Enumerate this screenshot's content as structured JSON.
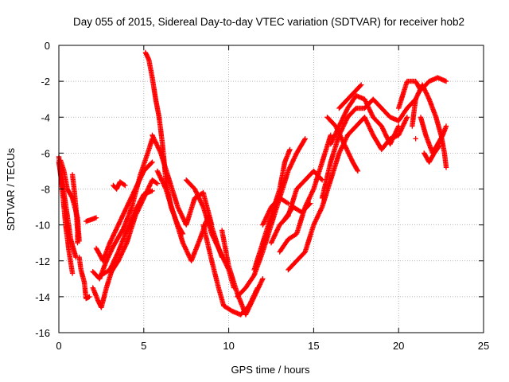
{
  "chart_data": {
    "type": "scatter",
    "title": "Day 055 of 2015, Sidereal Day-to-day VTEC variation (SDTVAR) for receiver hob2",
    "xlabel": "GPS time / hours",
    "ylabel": "SDTVAR / TECUs",
    "xlim": [
      0,
      25
    ],
    "ylim": [
      -16,
      0
    ],
    "xticks": [
      0,
      5,
      10,
      15,
      20,
      25
    ],
    "yticks": [
      0,
      -2,
      -4,
      -6,
      -8,
      -10,
      -12,
      -14,
      -16
    ],
    "grid": true,
    "marker": "+",
    "colors": {
      "series": "#ff0000",
      "axes": "#000000",
      "grid": "#a0a0a0"
    },
    "series": [
      {
        "tracks": [
          [
            [
              0.0,
              -6.2
            ],
            [
              0.2,
              -8.0
            ],
            [
              0.4,
              -10.0
            ],
            [
              0.6,
              -11.5
            ],
            [
              0.8,
              -12.7
            ]
          ],
          [
            [
              0.0,
              -6.5
            ],
            [
              0.15,
              -7.5
            ],
            [
              0.3,
              -8.2
            ],
            [
              0.5,
              -9.5
            ],
            [
              0.7,
              -10.8
            ],
            [
              1.0,
              -11.8
            ]
          ],
          [
            [
              0.1,
              -6.4
            ],
            [
              0.3,
              -7.0
            ],
            [
              0.5,
              -8.0
            ],
            [
              0.8,
              -8.5
            ],
            [
              1.1,
              -9.6
            ],
            [
              1.2,
              -10.9
            ]
          ],
          [
            [
              0.8,
              -7.2
            ],
            [
              0.9,
              -8.0
            ],
            [
              1.0,
              -9.0
            ],
            [
              1.1,
              -10.3
            ],
            [
              1.1,
              -11.0
            ]
          ],
          [
            [
              1.2,
              -11.8
            ],
            [
              1.3,
              -12.5
            ],
            [
              1.5,
              -13.2
            ],
            [
              1.6,
              -14.1
            ],
            [
              1.8,
              -14.0
            ]
          ],
          [
            [
              1.6,
              -9.8
            ],
            [
              1.9,
              -9.7
            ],
            [
              2.2,
              -9.6
            ]
          ],
          [
            [
              2.0,
              -13.5
            ],
            [
              2.3,
              -14.2
            ],
            [
              2.5,
              -14.6
            ],
            [
              2.8,
              -13.5
            ],
            [
              3.1,
              -12.6
            ],
            [
              3.5,
              -12.0
            ],
            [
              4.0,
              -11.0
            ],
            [
              4.5,
              -9.5
            ],
            [
              5.0,
              -8.5
            ],
            [
              5.5,
              -7.5
            ],
            [
              5.8,
              -7.7
            ]
          ],
          [
            [
              2.0,
              -12.6
            ],
            [
              2.4,
              -13.0
            ],
            [
              2.8,
              -12.0
            ],
            [
              3.2,
              -11.2
            ],
            [
              3.8,
              -10.2
            ],
            [
              4.3,
              -9.0
            ],
            [
              4.8,
              -7.2
            ],
            [
              5.3,
              -5.8
            ],
            [
              5.5,
              -5.2
            ]
          ],
          [
            [
              2.2,
              -11.3
            ],
            [
              2.6,
              -12.0
            ],
            [
              3.0,
              -11.0
            ],
            [
              3.5,
              -10.0
            ],
            [
              4.0,
              -9.0
            ],
            [
              4.5,
              -8.0
            ],
            [
              5.0,
              -7.0
            ],
            [
              5.5,
              -6.5
            ]
          ],
          [
            [
              2.5,
              -12.8
            ],
            [
              3.0,
              -12.5
            ],
            [
              3.5,
              -11.5
            ],
            [
              4.0,
              -10.3
            ],
            [
              4.5,
              -9.2
            ],
            [
              5.0,
              -8.3
            ],
            [
              5.5,
              -8.1
            ]
          ],
          [
            [
              3.2,
              -7.8
            ],
            [
              3.4,
              -8.0
            ],
            [
              3.6,
              -7.6
            ],
            [
              3.9,
              -7.8
            ]
          ],
          [
            [
              5.1,
              -0.4
            ],
            [
              5.3,
              -0.8
            ],
            [
              5.5,
              -1.8
            ],
            [
              5.7,
              -3.0
            ],
            [
              5.9,
              -4.0
            ],
            [
              6.1,
              -5.5
            ],
            [
              6.3,
              -7.5
            ],
            [
              6.6,
              -9.0
            ],
            [
              7.0,
              -10.0
            ],
            [
              7.3,
              -10.5
            ]
          ],
          [
            [
              5.8,
              -7.0
            ],
            [
              6.3,
              -8.0
            ],
            [
              6.8,
              -9.5
            ],
            [
              7.3,
              -11.0
            ],
            [
              7.8,
              -12.0
            ],
            [
              8.3,
              -10.8
            ],
            [
              8.8,
              -9.5
            ],
            [
              9.3,
              -11.0
            ],
            [
              9.6,
              -11.8
            ]
          ],
          [
            [
              5.5,
              -5.0
            ],
            [
              6.0,
              -6.0
            ],
            [
              6.5,
              -7.5
            ],
            [
              7.0,
              -9.0
            ],
            [
              7.5,
              -10.0
            ],
            [
              8.0,
              -8.5
            ],
            [
              8.5,
              -8.2
            ],
            [
              9.0,
              -10.0
            ]
          ],
          [
            [
              7.5,
              -7.5
            ],
            [
              8.0,
              -8.0
            ],
            [
              8.5,
              -9.0
            ],
            [
              9.0,
              -10.5
            ],
            [
              9.5,
              -11.5
            ],
            [
              10.0,
              -12.5
            ],
            [
              10.3,
              -13.5
            ]
          ],
          [
            [
              8.5,
              -10.0
            ],
            [
              9.0,
              -12.0
            ],
            [
              9.4,
              -13.5
            ],
            [
              9.7,
              -14.5
            ],
            [
              10.2,
              -14.8
            ],
            [
              10.7,
              -15.0
            ],
            [
              11.2,
              -14.5
            ],
            [
              11.7,
              -13.5
            ]
          ],
          [
            [
              9.6,
              -10.3
            ],
            [
              10.0,
              -12.3
            ],
            [
              10.5,
              -13.8
            ],
            [
              11.0,
              -15.0
            ],
            [
              11.5,
              -14.0
            ],
            [
              12.0,
              -13.0
            ]
          ],
          [
            [
              10.5,
              -14.0
            ],
            [
              11.0,
              -13.5
            ],
            [
              11.5,
              -12.8
            ],
            [
              12.0,
              -11.5
            ],
            [
              12.5,
              -10.0
            ],
            [
              13.0,
              -8.5
            ],
            [
              13.5,
              -7.0
            ],
            [
              14.0,
              -6.0
            ],
            [
              14.5,
              -5.2
            ]
          ],
          [
            [
              11.5,
              -12.5
            ],
            [
              12.0,
              -11.0
            ],
            [
              12.5,
              -9.5
            ],
            [
              13.0,
              -8.0
            ],
            [
              13.3,
              -6.5
            ],
            [
              13.6,
              -5.8
            ]
          ],
          [
            [
              12.0,
              -10.0
            ],
            [
              12.5,
              -9.0
            ],
            [
              13.0,
              -8.5
            ],
            [
              13.5,
              -8.8
            ]
          ],
          [
            [
              12.5,
              -11.0
            ],
            [
              13.0,
              -10.0
            ],
            [
              13.5,
              -9.5
            ],
            [
              14.0,
              -8.0
            ],
            [
              14.5,
              -7.5
            ],
            [
              15.0,
              -7.0
            ],
            [
              15.5,
              -7.5
            ]
          ],
          [
            [
              13.0,
              -11.5
            ],
            [
              13.5,
              -10.8
            ],
            [
              14.0,
              -10.5
            ],
            [
              14.5,
              -9.0
            ],
            [
              15.0,
              -8.0
            ],
            [
              15.5,
              -6.5
            ],
            [
              16.0,
              -5.0
            ]
          ],
          [
            [
              13.5,
              -12.5
            ],
            [
              14.0,
              -12.0
            ],
            [
              14.5,
              -11.5
            ],
            [
              15.0,
              -10.0
            ],
            [
              15.5,
              -9.0
            ],
            [
              16.0,
              -7.5
            ],
            [
              16.5,
              -6.0
            ],
            [
              17.0,
              -5.0
            ]
          ],
          [
            [
              13.2,
              -9.8
            ],
            [
              13.8,
              -9.0
            ],
            [
              14.3,
              -9.3
            ],
            [
              14.8,
              -8.8
            ]
          ],
          [
            [
              15.5,
              -8.5
            ],
            [
              16.0,
              -6.5
            ],
            [
              16.5,
              -5.0
            ],
            [
              17.0,
              -4.0
            ],
            [
              17.5,
              -3.5
            ],
            [
              18.0,
              -3.5
            ],
            [
              18.5,
              -3.0
            ],
            [
              19.0,
              -3.5
            ],
            [
              19.5,
              -4.0
            ],
            [
              20.0,
              -4.2
            ],
            [
              20.5,
              -3.5
            ],
            [
              21.0,
              -3.0
            ]
          ],
          [
            [
              16.0,
              -5.5
            ],
            [
              16.5,
              -4.5
            ],
            [
              17.0,
              -3.5
            ],
            [
              17.5,
              -2.8
            ],
            [
              18.0,
              -3.0
            ],
            [
              18.5,
              -4.0
            ],
            [
              19.0,
              -4.5
            ],
            [
              19.5,
              -5.5
            ],
            [
              20.0,
              -4.5
            ]
          ],
          [
            [
              15.8,
              -4.0
            ],
            [
              16.3,
              -4.5
            ],
            [
              16.8,
              -5.5
            ],
            [
              17.3,
              -6.5
            ],
            [
              17.6,
              -7.0
            ]
          ],
          [
            [
              16.5,
              -3.5
            ],
            [
              17.0,
              -3.0
            ],
            [
              17.5,
              -2.5
            ],
            [
              17.8,
              -2.2
            ]
          ],
          [
            [
              17.0,
              -5.0
            ],
            [
              17.5,
              -4.5
            ],
            [
              18.0,
              -4.0
            ],
            [
              18.5,
              -5.0
            ],
            [
              19.0,
              -5.8
            ],
            [
              19.5,
              -5.2
            ],
            [
              20.0,
              -5.0
            ],
            [
              20.5,
              -4.0
            ]
          ],
          [
            [
              20.0,
              -3.5
            ],
            [
              20.5,
              -2.0
            ],
            [
              21.0,
              -2.0
            ],
            [
              21.3,
              -2.5
            ],
            [
              21.8,
              -2.0
            ],
            [
              22.3,
              -1.8
            ],
            [
              22.8,
              -2.0
            ]
          ],
          [
            [
              20.8,
              -4.5
            ],
            [
              21.0,
              -3.0
            ],
            [
              21.4,
              -2.2
            ],
            [
              21.8,
              -3.0
            ],
            [
              22.2,
              -4.0
            ],
            [
              22.5,
              -5.0
            ],
            [
              22.7,
              -6.0
            ],
            [
              22.8,
              -6.8
            ]
          ],
          [
            [
              21.3,
              -4.0
            ],
            [
              21.6,
              -5.0
            ],
            [
              22.0,
              -6.0
            ],
            [
              22.3,
              -5.5
            ],
            [
              22.6,
              -5.0
            ],
            [
              22.8,
              -4.5
            ]
          ],
          [
            [
              21.5,
              -6.0
            ],
            [
              21.8,
              -6.5
            ],
            [
              22.1,
              -6.0
            ],
            [
              22.4,
              -5.6
            ]
          ],
          [
            [
              21.0,
              -5.2
            ]
          ]
        ]
      }
    ]
  }
}
